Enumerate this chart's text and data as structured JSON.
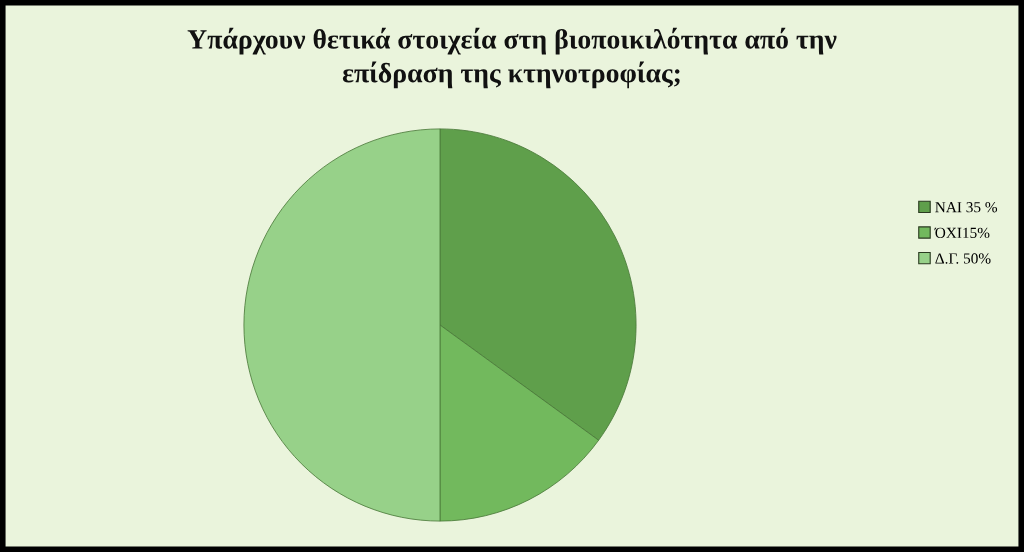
{
  "chart_data": {
    "type": "pie",
    "title": "Υπάρχουν θετικά στοιχεία στη βιοποικιλότητα από την\nεπίδραση της κτηνοτροφίας;",
    "categories": [
      "ΝΑΙ 35 %",
      "ΌΧΙ15%",
      "Δ.Γ. 50%"
    ],
    "values": [
      35,
      15,
      50
    ],
    "colors": [
      "#5f9f4b",
      "#72b95d",
      "#97d189"
    ],
    "legend": "right"
  }
}
